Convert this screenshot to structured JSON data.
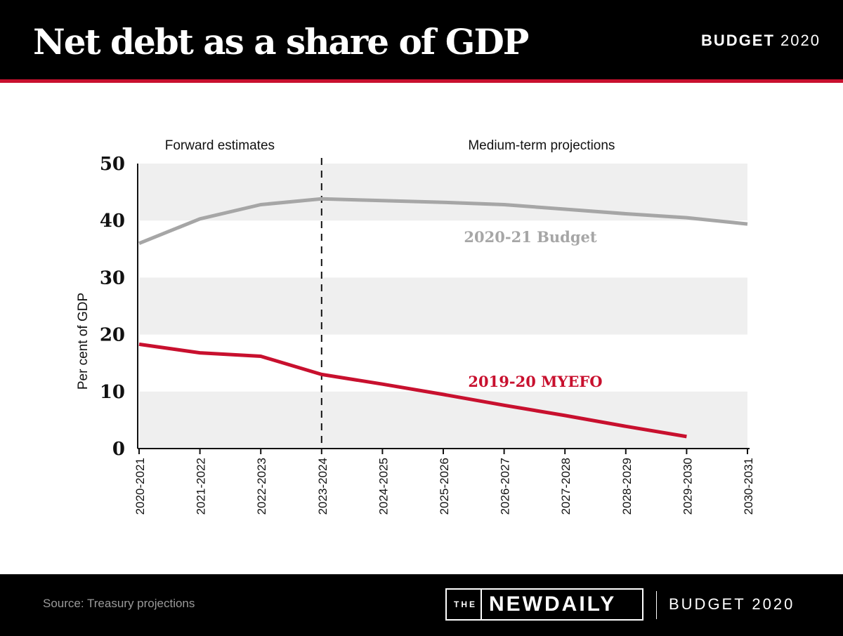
{
  "header": {
    "title": "Net debt as a share of GDP",
    "brand_bold": "BUDGET",
    "brand_year": "2020"
  },
  "footer": {
    "source": "Source: Treasury projections",
    "logo_prefix": "THE",
    "logo_name": "NEWDAILY",
    "brand": "BUDGET 2020"
  },
  "colors": {
    "budget_line": "#a6a6a6",
    "myefo_line": "#c8102e",
    "band": "#efefef",
    "header_bg": "#000000",
    "accent": "#c8102e"
  },
  "chart_data": {
    "type": "line",
    "ylabel": "Per cent of GDP",
    "ylim": [
      0,
      50
    ],
    "yticks": [
      "0",
      "10",
      "20",
      "30",
      "40",
      "50"
    ],
    "categories": [
      "2020-2021",
      "2021-2022",
      "2022-2023",
      "2023-2024",
      "2024-2025",
      "2025-2026",
      "2026-2027",
      "2027-2028",
      "2028-2029",
      "2029-2030",
      "2030-2031"
    ],
    "series": [
      {
        "name": "2020-21 Budget",
        "values": [
          36.0,
          40.3,
          42.8,
          43.8,
          43.5,
          43.2,
          42.8,
          42.0,
          41.2,
          40.5,
          39.4
        ]
      },
      {
        "name": "2019-20 MYEFO",
        "values": [
          18.3,
          16.8,
          16.2,
          13.0,
          11.3,
          9.5,
          7.6,
          5.8,
          3.9,
          2.1,
          null
        ]
      }
    ],
    "regions": [
      {
        "label": "Forward estimates"
      },
      {
        "label": "Medium-term projections"
      }
    ],
    "divider_after": "2023-2024",
    "grid": false,
    "legend": "inline labels"
  }
}
